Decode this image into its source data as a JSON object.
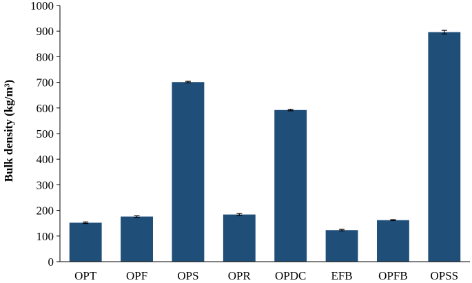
{
  "chart_data": {
    "type": "bar",
    "categories": [
      "OPT",
      "OPF",
      "OPS",
      "OPR",
      "OPDC",
      "EFB",
      "OPFB",
      "OPSS"
    ],
    "values": [
      152,
      176,
      701,
      184,
      592,
      123,
      162,
      896
    ],
    "errors": [
      3,
      3,
      3,
      4,
      3,
      3,
      2,
      7
    ],
    "ylabel": "Bulk density (kg/m³)",
    "xlabel": "",
    "ylim": [
      0,
      1000
    ],
    "yticks": [
      0,
      100,
      200,
      300,
      400,
      500,
      600,
      700,
      800,
      900,
      1000
    ],
    "ytick_labels": [
      "0",
      "100",
      "200",
      "300",
      "400",
      "500",
      "600",
      "700",
      "800",
      "900",
      "1000"
    ],
    "grid": false,
    "bar_color": "#1F4E79",
    "error_bar_color": "#000000"
  }
}
